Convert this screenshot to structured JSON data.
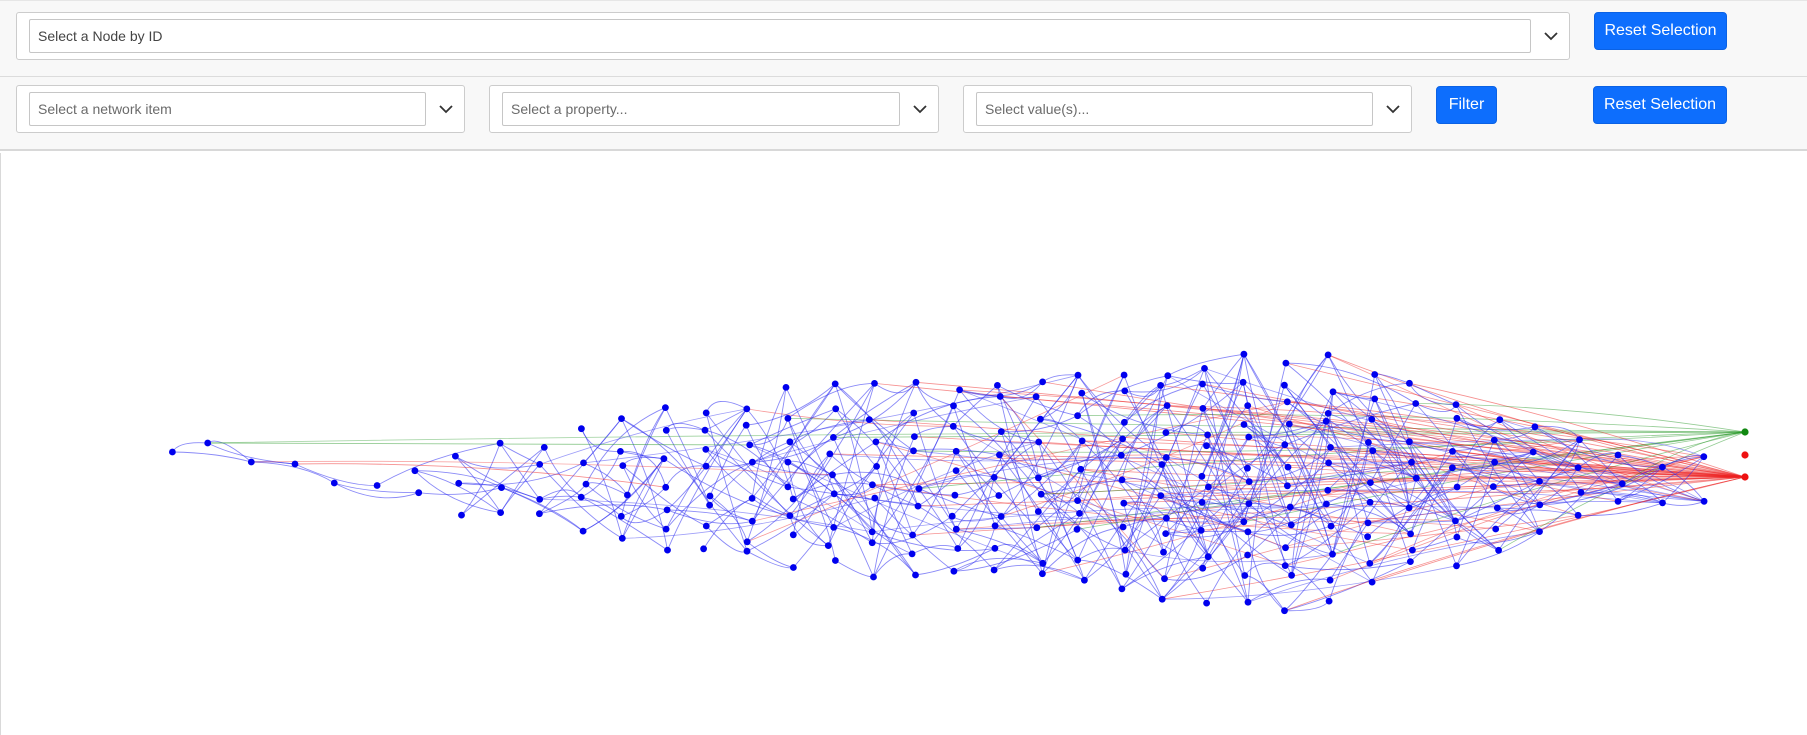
{
  "node_selector": {
    "placeholder": "Select a Node by ID",
    "reset_label": "Reset Selection"
  },
  "filter_bar": {
    "network_item_placeholder": "Select a network item",
    "property_placeholder": "Select a property...",
    "values_placeholder": "Select value(s)...",
    "filter_label": "Filter",
    "reset_label": "Reset Selection"
  },
  "icons": {
    "dropdown": "chevron-down-icon"
  },
  "graph": {
    "node_color": "#0000ee",
    "edge_color_main": "#2a2af0",
    "edge_color_alt": "#ee2222",
    "edge_color_green": "#2a9a2a",
    "sink_nodes": [
      {
        "color": "green"
      },
      {
        "color": "red"
      },
      {
        "color": "red"
      }
    ]
  },
  "colors": {
    "accent": "#0d6efd",
    "toolbar_bg": "#f8f8f8"
  }
}
